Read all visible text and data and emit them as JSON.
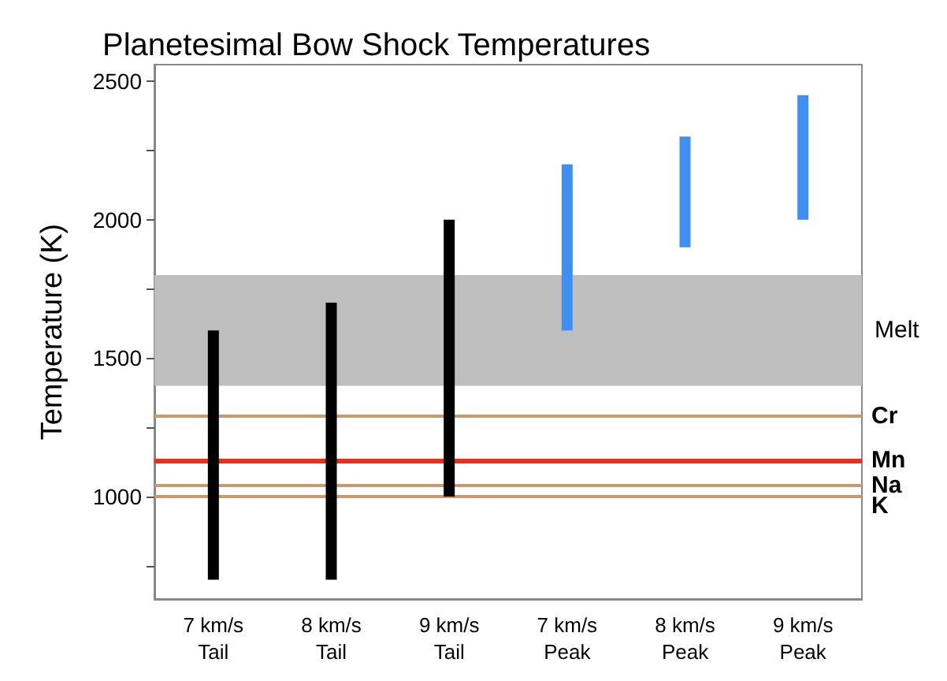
{
  "chart_data": {
    "type": "bar",
    "title": "Planetesimal Bow Shock Temperatures",
    "ylabel": "Temperature (K)",
    "categories": [
      "7 km/s\nTail",
      "8 km/s\nTail",
      "9 km/s\nTail",
      "7 km/s\nPeak",
      "8 km/s\nPeak",
      "9 km/s\nPeak"
    ],
    "values": [
      900,
      1000,
      1000,
      600,
      400,
      450
    ],
    "base": [
      700,
      700,
      1000,
      1600,
      1900,
      2000
    ],
    "colors": [
      "#000000",
      "#000000",
      "#000000",
      "#3f8ef2",
      "#3f8ef2",
      "#3f8ef2"
    ],
    "ylim": [
      630,
      2560
    ],
    "yticks": [
      {
        "value": 750,
        "label": null
      },
      1000,
      {
        "value": 1250,
        "label": null
      },
      1500,
      {
        "value": 1750,
        "label": null
      },
      2000,
      {
        "value": 2250,
        "label": null
      },
      2500
    ],
    "bands": [
      {
        "axis": "y",
        "from": 1400,
        "to": 1800,
        "label": "Melt",
        "color": "#bebebe"
      }
    ],
    "ref_lines": [
      {
        "axis": "y",
        "value": 1290,
        "label": "Cr",
        "color": "#c99a6b"
      },
      {
        "axis": "y",
        "value": 1130,
        "label": "Mn",
        "color": "#e8301c"
      },
      {
        "axis": "y",
        "value": 1040,
        "label": "Na",
        "color": "#c99a6b"
      },
      {
        "axis": "y",
        "value": 1000,
        "label": "K",
        "color": "#c99a6b"
      }
    ],
    "grid": false
  }
}
